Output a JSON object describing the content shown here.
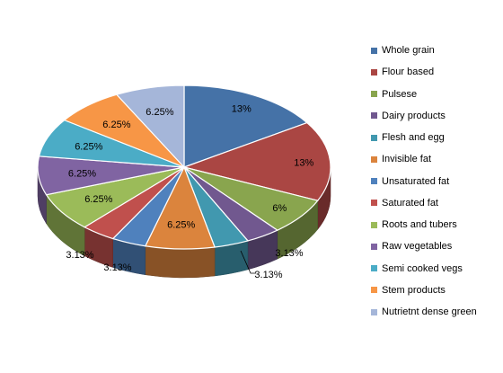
{
  "chart_data": {
    "type": "pie",
    "style": "3d-exploded-perspective",
    "legend_position": "right",
    "slices": [
      {
        "label": "Whole grain",
        "value": 13,
        "display": "13%",
        "color": "#4572A7"
      },
      {
        "label": "Flour based",
        "value": 13,
        "display": "13%",
        "color": "#AA4643"
      },
      {
        "label": "Pulsese",
        "value": 6,
        "display": "6%",
        "color": "#89A54E"
      },
      {
        "label": "Dairy products",
        "value": 3.13,
        "display": "3.13%",
        "color": "#71588F"
      },
      {
        "label": "Flesh and egg",
        "value": 3.13,
        "display": "3.13%",
        "color": "#4198AF"
      },
      {
        "label": "Invisible fat",
        "value": 6.25,
        "display": "6.25%",
        "color": "#DB843D"
      },
      {
        "label": "Unsaturated fat",
        "value": 3.13,
        "display": "3.13%",
        "color": "#4F81BD"
      },
      {
        "label": "Saturated fat",
        "value": 3.13,
        "display": "3.13%",
        "color": "#C0504D"
      },
      {
        "label": "Roots and tubers",
        "value": 6.25,
        "display": "6.25%",
        "color": "#9BBB59"
      },
      {
        "label": "Raw vegetables",
        "value": 6.25,
        "display": "6.25%",
        "color": "#8064A2"
      },
      {
        "label": "Semi cooked vegs",
        "value": 6.25,
        "display": "6.25%",
        "color": "#4BACC6"
      },
      {
        "label": "Stem products",
        "value": 6.25,
        "display": "6.25%",
        "color": "#F79646"
      },
      {
        "label": "Nutrietnt dense green",
        "value": 6.25,
        "display": "6.25%",
        "color": "#A5B6D9"
      }
    ]
  }
}
